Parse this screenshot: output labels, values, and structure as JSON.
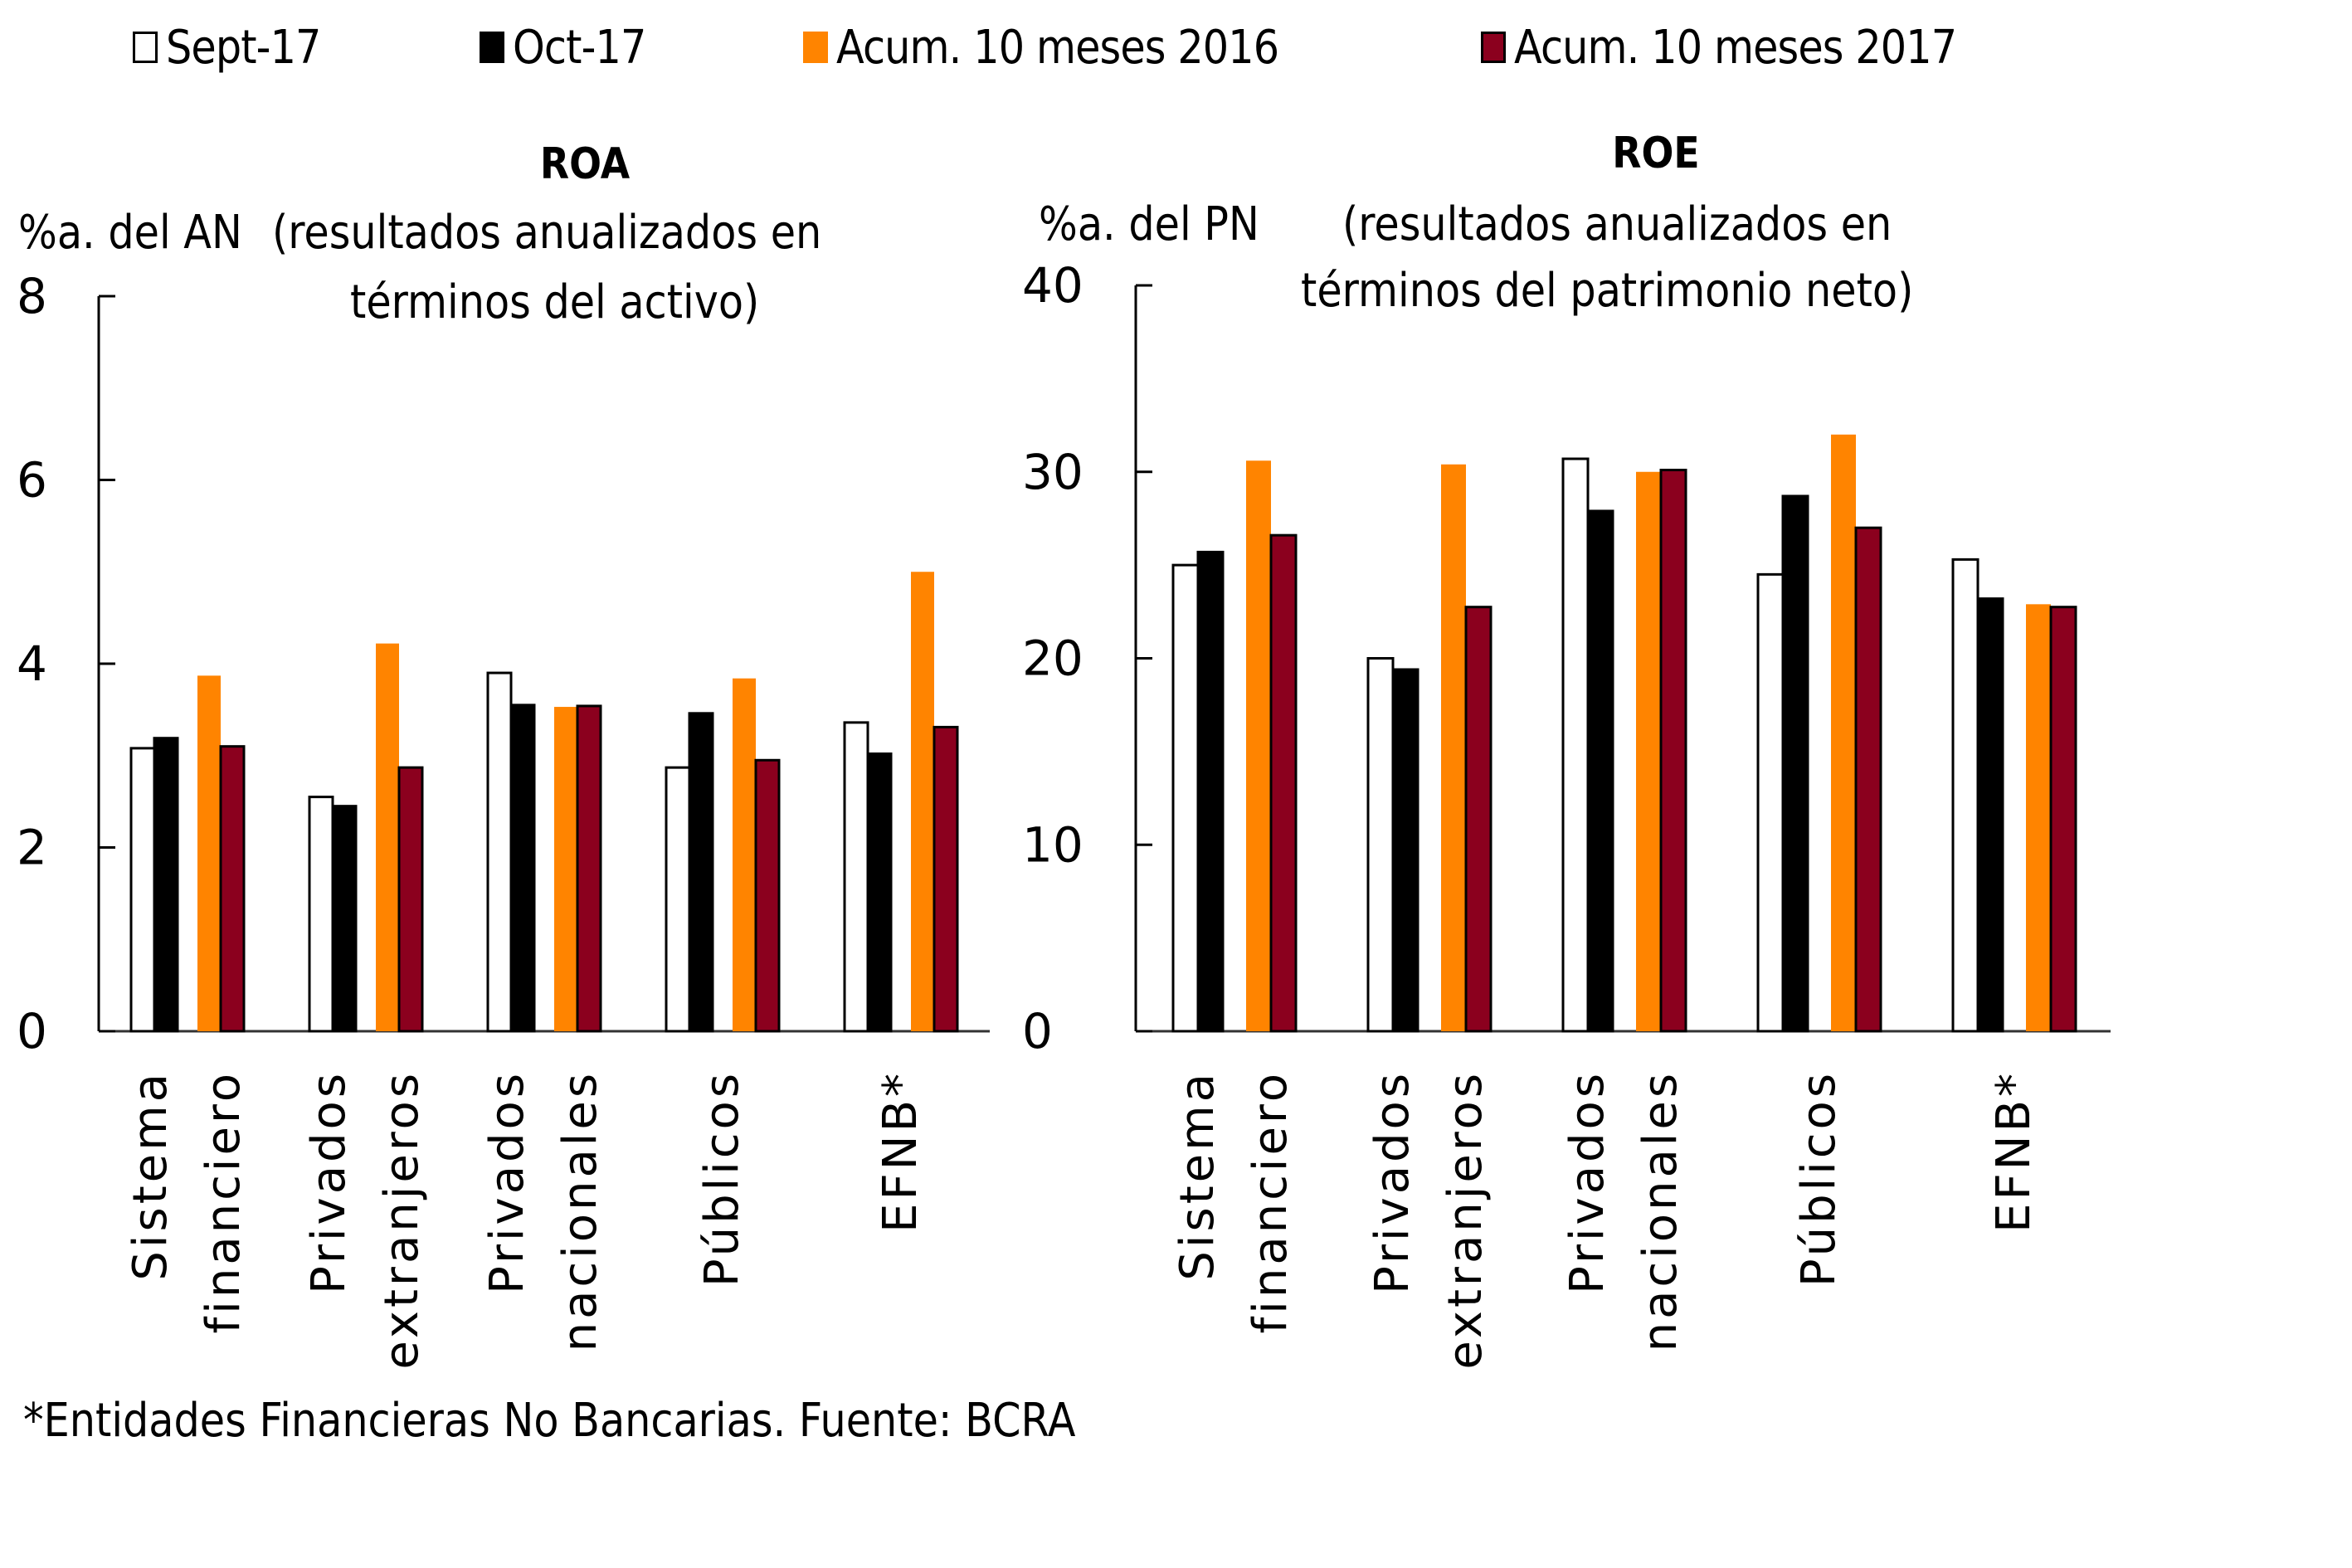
{
  "legend": [
    {
      "label": "Sept-17",
      "color": "#ffffff",
      "stroke": "#000000"
    },
    {
      "label": "Oct-17",
      "color": "#000000",
      "stroke": "#000000"
    },
    {
      "label": "Acum. 10 meses 2016",
      "color": "#ff8400",
      "stroke": "none"
    },
    {
      "label": "Acum. 10 meses 2017",
      "color": "#8b001e",
      "stroke": "#000000"
    }
  ],
  "footnote": "*Entidades Financieras No Bancarias. Fuente: BCRA",
  "chart_data": [
    {
      "type": "bar",
      "title": "ROA",
      "ylabel": "%a. del AN",
      "subtitle_line1": "(resultados anualizados en",
      "subtitle_line2": "términos del activo)",
      "ylim": [
        0,
        8
      ],
      "yticks": [
        0,
        2,
        4,
        6,
        8
      ],
      "grid": false,
      "legend_position": "top",
      "categories": [
        [
          "Sistema",
          "financiero"
        ],
        [
          "Privados",
          "extranjeros"
        ],
        [
          "Privados",
          "nacionales"
        ],
        [
          "Públicos"
        ],
        [
          "EFNB*"
        ]
      ],
      "series": [
        {
          "name": "Sept-17",
          "values": [
            3.08,
            2.55,
            3.9,
            2.87,
            3.36
          ]
        },
        {
          "name": "Oct-17",
          "values": [
            3.19,
            2.45,
            3.55,
            3.46,
            3.02
          ]
        },
        {
          "name": "Acum. 10 meses 2016",
          "values": [
            3.87,
            4.22,
            3.53,
            3.84,
            5.0
          ]
        },
        {
          "name": "Acum. 10 meses 2017",
          "values": [
            3.1,
            2.87,
            3.54,
            2.95,
            3.31
          ]
        }
      ]
    },
    {
      "type": "bar",
      "title": "ROE",
      "ylabel": "%a. del PN",
      "subtitle_line1": "(resultados anualizados en",
      "subtitle_line2": "términos del patrimonio neto)",
      "ylim": [
        0,
        40
      ],
      "yticks": [
        0,
        10,
        20,
        30,
        40
      ],
      "grid": false,
      "legend_position": "top",
      "categories": [
        [
          "Sistema",
          "financiero"
        ],
        [
          "Privados",
          "extranjeros"
        ],
        [
          "Privados",
          "nacionales"
        ],
        [
          "Públicos"
        ],
        [
          "EFNB*"
        ]
      ],
      "series": [
        {
          "name": "Sept-17",
          "values": [
            25.0,
            20.0,
            30.7,
            24.5,
            25.3
          ]
        },
        {
          "name": "Oct-17",
          "values": [
            25.7,
            19.4,
            27.9,
            28.7,
            23.2
          ]
        },
        {
          "name": "Acum. 10 meses 2016",
          "values": [
            30.6,
            30.4,
            30.0,
            32.0,
            22.9
          ]
        },
        {
          "name": "Acum. 10 meses 2017",
          "values": [
            26.6,
            22.75,
            30.1,
            27.0,
            22.75
          ]
        }
      ]
    }
  ]
}
